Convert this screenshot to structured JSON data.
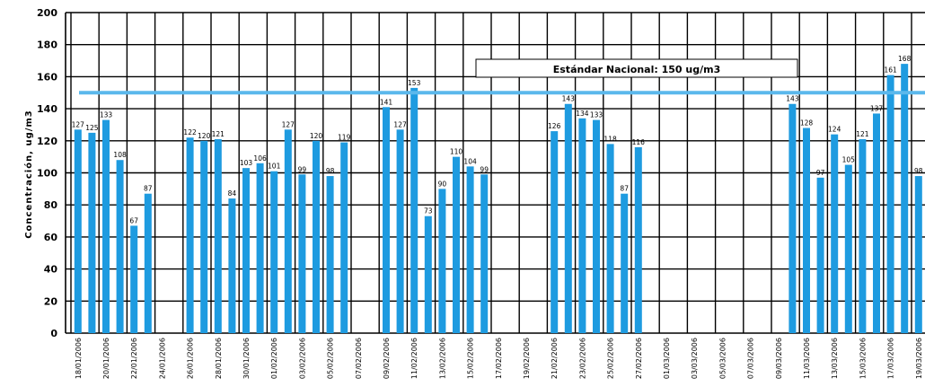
{
  "chart_data": {
    "type": "bar",
    "ylabel": "Concentración, ug/m3",
    "ylim": [
      0,
      200
    ],
    "yticks": [
      0,
      20,
      40,
      60,
      80,
      100,
      120,
      140,
      160,
      180,
      200
    ],
    "grid": true,
    "bar_color": "#1E9BE0",
    "reference_line": {
      "label": "Estándar Nacional: 150 ug/m3",
      "value": 150,
      "color": "#5BB8EC"
    },
    "categories": [
      "18/01/2006",
      "19/01/2006",
      "20/01/2006",
      "21/01/2006",
      "22/01/2006",
      "23/01/2006",
      "24/01/2006",
      "25/01/2006",
      "26/01/2006",
      "27/01/2006",
      "28/01/2006",
      "29/01/2006",
      "30/01/2006",
      "31/01/2006",
      "01/02/2006",
      "02/02/2006",
      "03/02/2006",
      "04/02/2006",
      "05/02/2006",
      "06/02/2006",
      "07/02/2006",
      "08/02/2006",
      "09/02/2006",
      "10/02/2006",
      "11/02/2006",
      "12/02/2006",
      "13/02/2006",
      "14/02/2006",
      "15/02/2006",
      "16/02/2006",
      "17/02/2006",
      "18/02/2006",
      "19/02/2006",
      "20/02/2006",
      "21/02/2006",
      "22/02/2006",
      "23/02/2006",
      "24/02/2006",
      "25/02/2006",
      "26/02/2006",
      "27/02/2006",
      "28/02/2006",
      "01/03/2006",
      "02/03/2006",
      "03/03/2006",
      "04/03/2006",
      "05/03/2006",
      "06/03/2006",
      "07/03/2006",
      "08/03/2006",
      "09/03/2006",
      "10/03/2006",
      "11/03/2006",
      "12/03/2006",
      "13/03/2006",
      "14/03/2006",
      "15/03/2006",
      "16/03/2006",
      "17/03/2006",
      "18/03/2006",
      "19/03/2006",
      "20/03/2006"
    ],
    "xtick_labels": [
      "18/01/2006",
      "20/01/2006",
      "22/01/2006",
      "24/01/2006",
      "26/01/2006",
      "28/01/2006",
      "30/01/2006",
      "01/02/2006",
      "03/02/2006",
      "05/02/2006",
      "07/02/2006",
      "09/02/2006",
      "11/02/2006",
      "13/02/2006",
      "15/02/2006",
      "17/02/2006",
      "19/02/2006",
      "21/02/2006",
      "23/02/2006",
      "25/02/2006",
      "27/02/2006",
      "01/03/2006",
      "03/03/2006",
      "05/03/2006",
      "07/03/2006",
      "09/03/2006",
      "11/03/2006",
      "13/03/2006",
      "15/03/2006",
      "17/03/2006",
      "19/03/2006"
    ],
    "values": [
      127,
      125,
      133,
      108,
      67,
      87,
      null,
      null,
      122,
      120,
      121,
      84,
      103,
      106,
      101,
      127,
      99,
      120,
      98,
      119,
      null,
      null,
      141,
      127,
      153,
      73,
      90,
      110,
      104,
      99,
      null,
      null,
      null,
      null,
      126,
      143,
      134,
      133,
      118,
      87,
      116,
      null,
      null,
      null,
      null,
      null,
      null,
      null,
      null,
      null,
      null,
      143,
      128,
      97,
      124,
      105,
      121,
      137,
      161,
      168,
      98,
      116
    ],
    "value_labels": [
      "127",
      "125",
      "133",
      "108",
      "67",
      "87",
      null,
      null,
      "122",
      "120",
      "121",
      "84",
      "103",
      "106",
      "101",
      "127",
      "99",
      "120",
      "98",
      "119",
      null,
      null,
      "141",
      "127",
      "153",
      "73",
      "90",
      "110",
      "104",
      "99",
      null,
      null,
      null,
      null,
      "126",
      "143",
      "134",
      "133",
      "118",
      "87",
      "116",
      null,
      null,
      null,
      null,
      null,
      null,
      null,
      null,
      null,
      null,
      "143",
      "128",
      "97",
      "124",
      "105",
      "121",
      "137",
      "161",
      "168",
      "98",
      "116"
    ]
  }
}
